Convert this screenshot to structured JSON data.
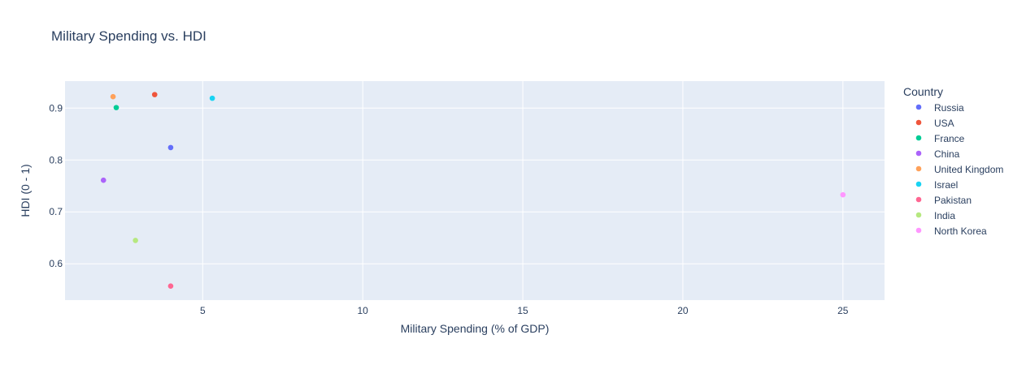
{
  "chart_data": {
    "type": "scatter",
    "title": "Military Spending vs. HDI",
    "xlabel": "Military Spending (% of GDP)",
    "ylabel": "HDI (0 - 1)",
    "xlim": [
      0.7,
      26.3
    ],
    "ylim": [
      0.53,
      0.952
    ],
    "x_ticks": [
      5,
      10,
      15,
      20,
      25
    ],
    "y_ticks": [
      0.6,
      0.7,
      0.8,
      0.9
    ],
    "grid": true,
    "legend": {
      "title": "Country",
      "placement": "right"
    },
    "series": [
      {
        "name": "Russia",
        "color": "#636efa",
        "points": [
          {
            "x": 4.0,
            "y": 0.824
          }
        ]
      },
      {
        "name": "USA",
        "color": "#EF553B",
        "points": [
          {
            "x": 3.5,
            "y": 0.926
          }
        ]
      },
      {
        "name": "France",
        "color": "#00cc96",
        "points": [
          {
            "x": 2.3,
            "y": 0.901
          }
        ]
      },
      {
        "name": "China",
        "color": "#ab63fa",
        "points": [
          {
            "x": 1.9,
            "y": 0.761
          }
        ]
      },
      {
        "name": "United Kingdom",
        "color": "#FFA15A",
        "points": [
          {
            "x": 2.2,
            "y": 0.922
          }
        ]
      },
      {
        "name": "Israel",
        "color": "#19d3f3",
        "points": [
          {
            "x": 5.3,
            "y": 0.919
          }
        ]
      },
      {
        "name": "Pakistan",
        "color": "#FF6692",
        "points": [
          {
            "x": 4.0,
            "y": 0.557
          }
        ]
      },
      {
        "name": "India",
        "color": "#B6E880",
        "points": [
          {
            "x": 2.9,
            "y": 0.645
          }
        ]
      },
      {
        "name": "North Korea",
        "color": "#FF97FF",
        "points": [
          {
            "x": 25.0,
            "y": 0.733
          }
        ]
      }
    ]
  }
}
